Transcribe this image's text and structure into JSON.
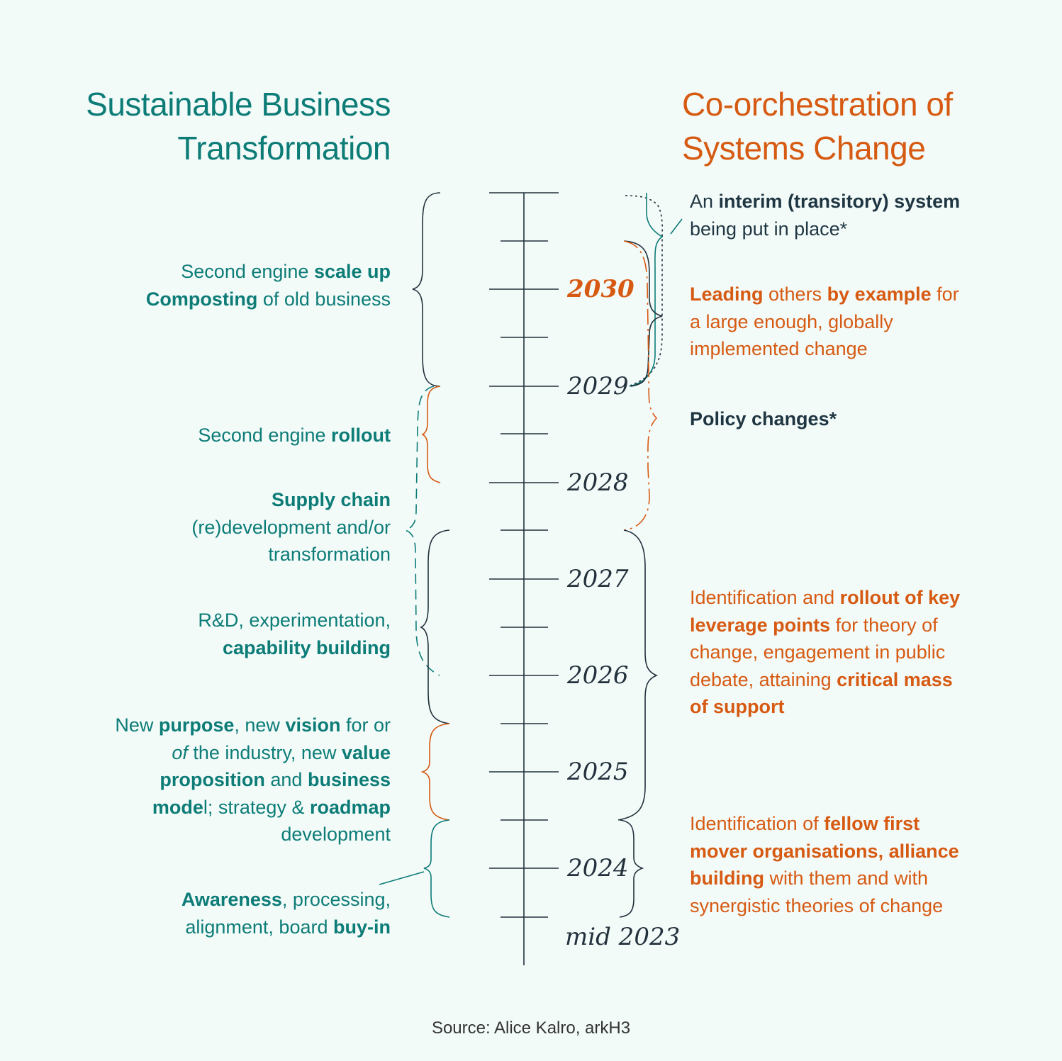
{
  "titles": {
    "left": [
      "Sustainable Business",
      "Transformation"
    ],
    "right": [
      "Co-orchestration of",
      "Systems Change"
    ]
  },
  "timeline": {
    "years": [
      "2030",
      "2029",
      "2028",
      "2027",
      "2026",
      "2025",
      "2024",
      "mid 2023"
    ],
    "highlighted_year": "2030"
  },
  "left_items": {
    "scale_up": {
      "line1": {
        "a": "Second engine ",
        "b": "scale up"
      },
      "line2": {
        "a": "Composting",
        "b": " of old business"
      }
    },
    "rollout": {
      "a": "Second engine ",
      "b": "rollout"
    },
    "supply_chain": {
      "bold": "Supply chain",
      "line2": "(re)development and/or",
      "line3": "transformation"
    },
    "rnd": {
      "line1": "R&D, experimentation,",
      "line2": "capability building"
    },
    "purpose": {
      "line1": {
        "a": "New ",
        "b": "purpose",
        "c": ", new ",
        "d": "vision",
        "e": " for or"
      },
      "line2": {
        "a": "of",
        "b": " the industry, new ",
        "c": "value"
      },
      "line3": {
        "a": "proposition",
        "b": " and ",
        "c": "business"
      },
      "line4": {
        "a": "mode",
        "b": "l; strategy & ",
        "c": "roadmap"
      },
      "line5": "development"
    },
    "awareness": {
      "line1": {
        "a": "Awareness",
        "b": ", processing,"
      },
      "line2": {
        "a": "alignment, board ",
        "b": "buy-in"
      }
    }
  },
  "right_items": {
    "interim": {
      "line1": {
        "a": "An ",
        "b": "interim (transitory) system"
      },
      "line2": "being put in place*"
    },
    "leading": {
      "line1": {
        "a": "Leading",
        "b": " others ",
        "c": "by example",
        "d": " for"
      },
      "line2": "a large enough, globally",
      "line3": "implemented change"
    },
    "policy": "Policy changes*",
    "leverage": {
      "line1": {
        "a": "Identification and ",
        "b": "rollout of key"
      },
      "line2": {
        "a": "leverage points",
        "b": " for theory of"
      },
      "line3": "change, engagement in public",
      "line4": {
        "a": "debate, attaining ",
        "b": "critical mass"
      },
      "line5": "of support"
    },
    "first_movers": {
      "line1": {
        "a": "Identification of ",
        "b": "fellow first"
      },
      "line2": "mover organisations, alliance",
      "line3": {
        "a": "building",
        "b": " with them and with"
      },
      "line4": "synergistic theories of change"
    }
  },
  "source": "Source: Alice Kalro, arkH3",
  "colors": {
    "teal": "#0d7c77",
    "orange": "#d65a12",
    "dark": "#1f3642",
    "background": "#f3fbf9"
  }
}
